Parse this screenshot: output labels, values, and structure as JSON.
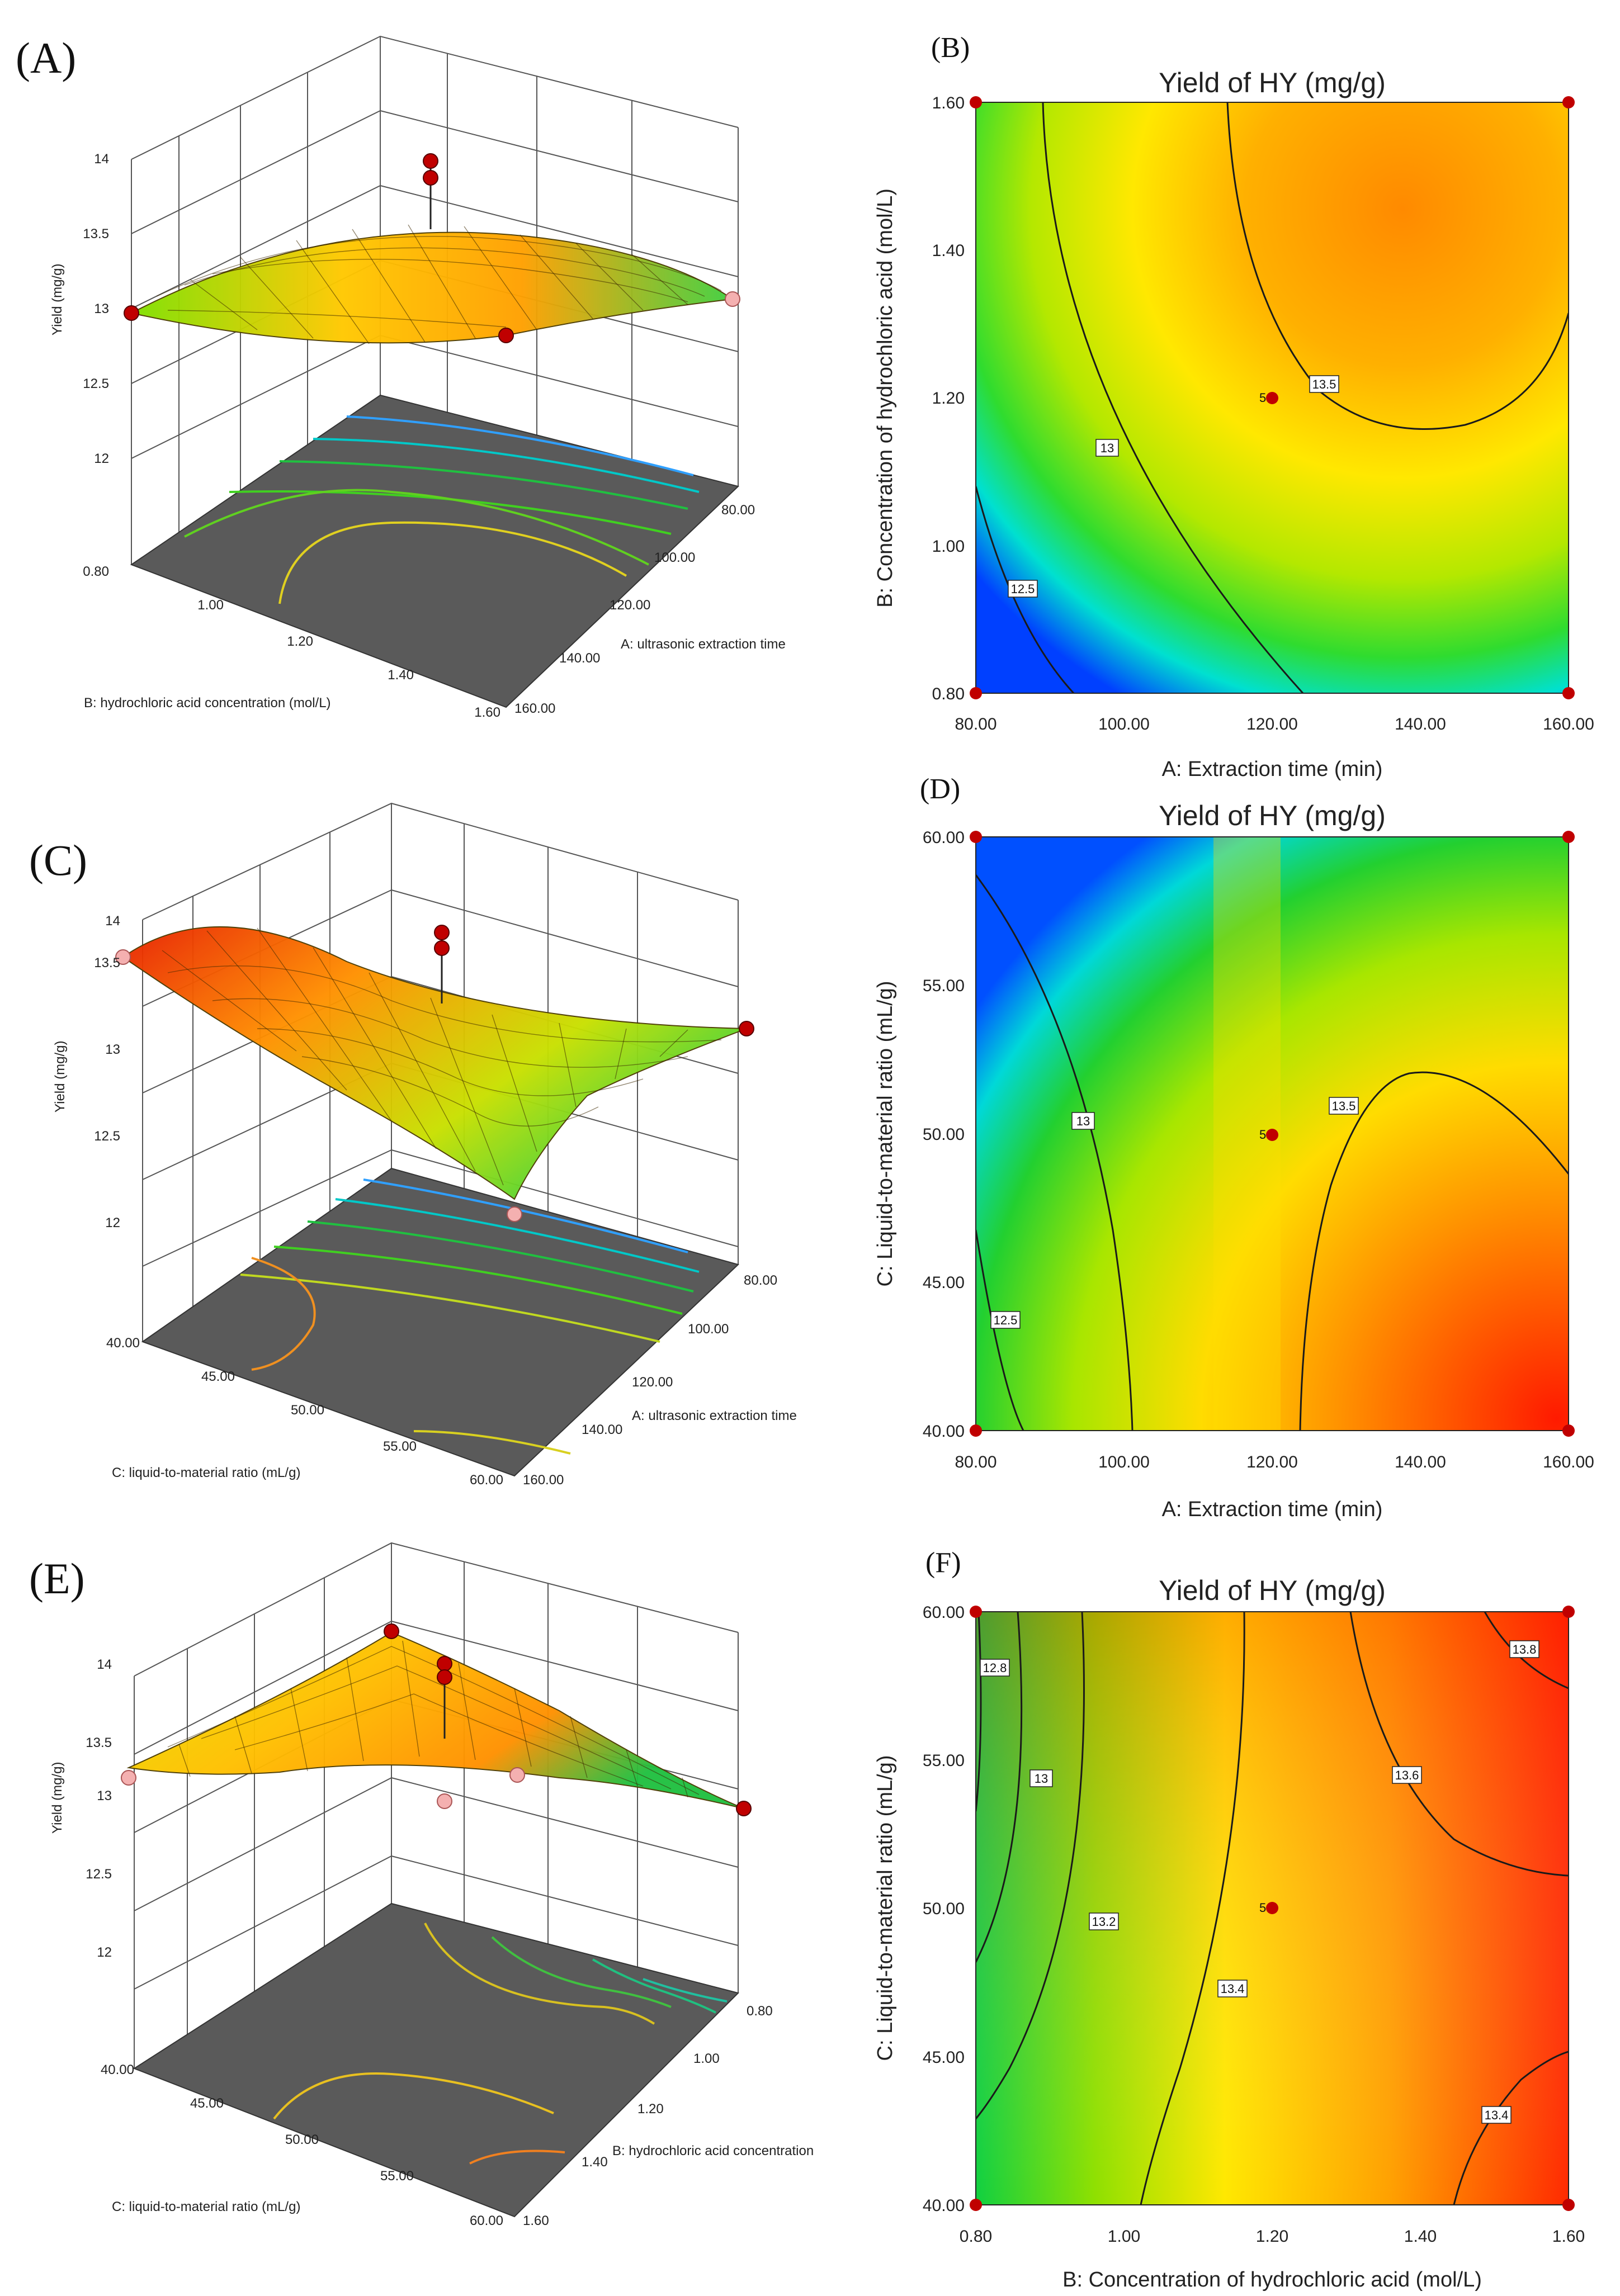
{
  "figure": {
    "panel_labels": [
      "(A)",
      "(B)",
      "(C)",
      "(D)",
      "(E)",
      "(F)"
    ]
  },
  "chart_data": [
    {
      "panel": "(A)",
      "type": "surface3d",
      "xlabel": "A: ultrasonic extraction time",
      "ylabel": "B: hydrochloric acid concentration (mol/L)",
      "zlabel": "Yield (mg/g)",
      "x_ticks": [
        "80.00",
        "100.00",
        "120.00",
        "140.00",
        "160.00"
      ],
      "y_ticks": [
        "0.80",
        "1.00",
        "1.20",
        "1.40",
        "1.60"
      ],
      "z_ticks": [
        "12",
        "12.5",
        "13",
        "13.5",
        "14"
      ],
      "zlim": [
        12,
        14
      ]
    },
    {
      "panel": "(B)",
      "type": "contour",
      "title": "Yield of HY (mg/g)",
      "xlabel": "A: Extraction time (min)",
      "ylabel": "B: Concentration of hydrochloric acid (mol/L)",
      "x_ticks": [
        "80.00",
        "100.00",
        "120.00",
        "140.00",
        "160.00"
      ],
      "y_ticks": [
        "0.80",
        "1.00",
        "1.20",
        "1.40",
        "1.60"
      ],
      "xlim": [
        80,
        160
      ],
      "ylim": [
        0.8,
        1.6
      ],
      "contour_labels": [
        "12.5",
        "13",
        "13.5"
      ],
      "center_point": {
        "x": 120,
        "y": 1.2,
        "label": "5"
      }
    },
    {
      "panel": "(C)",
      "type": "surface3d",
      "xlabel": "A: ultrasonic extraction time",
      "ylabel": "C: liquid-to-material ratio (mL/g)",
      "zlabel": "Yield (mg/g)",
      "x_ticks": [
        "80.00",
        "100.00",
        "120.00",
        "140.00",
        "160.00"
      ],
      "y_ticks": [
        "40.00",
        "45.00",
        "50.00",
        "55.00",
        "60.00"
      ],
      "z_ticks": [
        "12",
        "12.5",
        "13",
        "13.5",
        "14"
      ],
      "zlim": [
        12,
        14
      ]
    },
    {
      "panel": "(D)",
      "type": "contour",
      "title": "Yield of HY (mg/g)",
      "xlabel": "A: Extraction time (min)",
      "ylabel": "C: Liquid-to-material ratio (mL/g)",
      "x_ticks": [
        "80.00",
        "100.00",
        "120.00",
        "140.00",
        "160.00"
      ],
      "y_ticks": [
        "40.00",
        "45.00",
        "50.00",
        "55.00",
        "60.00"
      ],
      "xlim": [
        80,
        160
      ],
      "ylim": [
        40,
        60
      ],
      "contour_labels": [
        "12.5",
        "13",
        "13.5"
      ],
      "center_point": {
        "x": 120,
        "y": 50,
        "label": "5"
      }
    },
    {
      "panel": "(E)",
      "type": "surface3d",
      "xlabel": "B: hydrochloric acid concentration",
      "ylabel": "C: liquid-to-material ratio (mL/g)",
      "zlabel": "Yield (mg/g)",
      "x_ticks": [
        "0.80",
        "1.00",
        "1.20",
        "1.40",
        "1.60"
      ],
      "y_ticks": [
        "40.00",
        "45.00",
        "50.00",
        "55.00",
        "60.00"
      ],
      "z_ticks": [
        "12",
        "12.5",
        "13",
        "13.5",
        "14"
      ],
      "zlim": [
        12,
        14
      ]
    },
    {
      "panel": "(F)",
      "type": "contour",
      "title": "Yield of HY (mg/g)",
      "xlabel": "B: Concentration of hydrochloric acid (mol/L)",
      "ylabel": "C: Liquid-to-material ratio (mL/g)",
      "x_ticks": [
        "0.80",
        "1.00",
        "1.20",
        "1.40",
        "1.60"
      ],
      "y_ticks": [
        "40.00",
        "45.00",
        "50.00",
        "55.00",
        "60.00"
      ],
      "xlim": [
        0.8,
        1.6
      ],
      "ylim": [
        40,
        60
      ],
      "contour_labels": [
        "12.8",
        "13",
        "13.2",
        "13.4",
        "13.6",
        "13.8",
        "13.4"
      ],
      "center_point": {
        "x": 1.2,
        "y": 50,
        "label": "5"
      }
    }
  ]
}
